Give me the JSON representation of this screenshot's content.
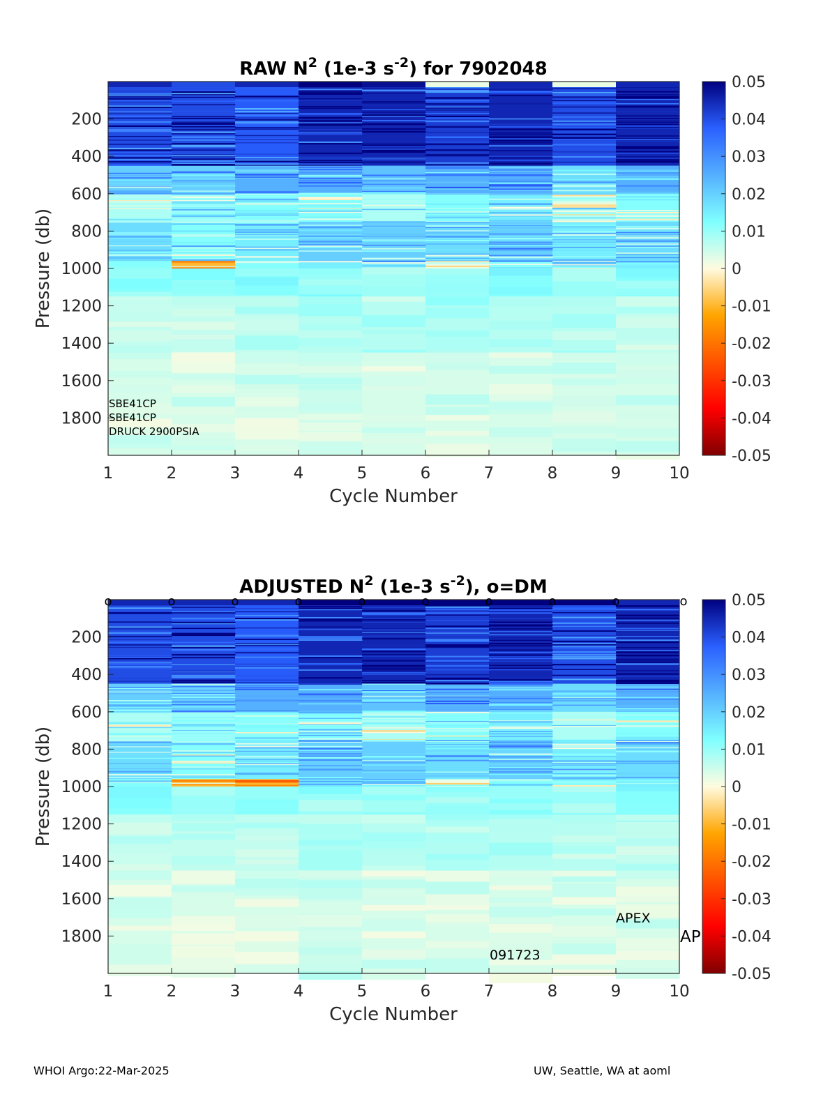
{
  "chart_data": [
    {
      "type": "heatmap",
      "title_prefix": "RAW N",
      "title_sup1": "2",
      "title_mid": " (1e-3 s",
      "title_sup2": "-2",
      "title_suffix": ") for 7902048",
      "xlabel": "Cycle Number",
      "ylabel": "Pressure (db)",
      "xlim": [
        1,
        10
      ],
      "ylim": [
        2000,
        0
      ],
      "xticks": [
        "1",
        "2",
        "3",
        "4",
        "5",
        "6",
        "7",
        "8",
        "9",
        "10"
      ],
      "yticks": [
        "200",
        "400",
        "600",
        "800",
        "1000",
        "1200",
        "1400",
        "1600",
        "1800"
      ],
      "colorbar": {
        "min": -0.05,
        "max": 0.05,
        "colormap": "jet",
        "ticks": [
          "0.05",
          "0.04",
          "0.03",
          "0.02",
          "0.01",
          "0",
          "-0.01",
          "-0.02",
          "-0.03",
          "-0.04",
          "-0.05"
        ]
      },
      "annotations": [
        "SBE41CP",
        "SBE41CP",
        "DRUCK 2900PSIA"
      ],
      "cycles": [
        1,
        2,
        3,
        4,
        5,
        6,
        7,
        8,
        9
      ],
      "data_bands": [
        {
          "p_top": 0,
          "p_bottom": 30,
          "values": [
            0.045,
            0.04,
            0.045,
            0.05,
            0.048,
            0.002,
            0.045,
            0.002,
            0.045
          ]
        },
        {
          "p_top": 30,
          "p_bottom": 450,
          "values": [
            0.04,
            0.04,
            0.038,
            0.045,
            0.045,
            0.042,
            0.045,
            0.04,
            0.045
          ]
        },
        {
          "p_top": 450,
          "p_bottom": 600,
          "values": [
            0.02,
            0.02,
            0.025,
            0.025,
            0.022,
            0.025,
            0.025,
            0.018,
            0.025
          ]
        },
        {
          "p_top": 600,
          "p_bottom": 750,
          "values": [
            0.008,
            0.01,
            0.012,
            0.012,
            0.008,
            0.012,
            0.015,
            0.008,
            0.012
          ]
        },
        {
          "p_top": 750,
          "p_bottom": 960,
          "values": [
            0.018,
            0.012,
            0.015,
            0.02,
            0.02,
            0.018,
            0.02,
            0.015,
            0.018
          ]
        },
        {
          "p_top": 960,
          "p_bottom": 1000,
          "values": [
            0.012,
            -0.01,
            0.012,
            0.015,
            0.015,
            0.002,
            0.012,
            0.012,
            0.015
          ]
        },
        {
          "p_top": 1000,
          "p_bottom": 1150,
          "values": [
            0.012,
            0.01,
            0.012,
            0.01,
            0.009,
            0.01,
            0.012,
            0.01,
            0.012
          ]
        },
        {
          "p_top": 1150,
          "p_bottom": 1450,
          "values": [
            0.006,
            0.006,
            0.006,
            0.008,
            0.007,
            0.008,
            0.007,
            0.007,
            0.006
          ]
        },
        {
          "p_top": 1450,
          "p_bottom": 2000,
          "values": [
            0.004,
            0.004,
            0.004,
            0.005,
            0.004,
            0.004,
            0.004,
            0.004,
            0.004
          ]
        }
      ]
    },
    {
      "type": "heatmap",
      "title_prefix": "ADJUSTED N",
      "title_sup1": "2",
      "title_mid": " (1e-3 s",
      "title_sup2": "-2",
      "title_suffix": "), o=DM",
      "xlabel": "Cycle Number",
      "ylabel": "Pressure (db)",
      "xlim": [
        1,
        10
      ],
      "ylim": [
        2000,
        0
      ],
      "xticks": [
        "1",
        "2",
        "3",
        "4",
        "5",
        "6",
        "7",
        "8",
        "9",
        "10"
      ],
      "yticks": [
        "200",
        "400",
        "600",
        "800",
        "1000",
        "1200",
        "1400",
        "1600",
        "1800"
      ],
      "colorbar": {
        "min": -0.05,
        "max": 0.05,
        "colormap": "jet",
        "ticks": [
          "0.05",
          "0.04",
          "0.03",
          "0.02",
          "0.01",
          "0",
          "-0.01",
          "-0.02",
          "-0.03",
          "-0.04",
          "-0.05"
        ]
      },
      "dm_marker": "o",
      "dm_cycles": [
        1,
        2,
        3,
        4,
        5,
        6,
        7,
        8,
        9,
        10
      ],
      "annotations": [
        "APEX",
        "AP",
        "091723"
      ],
      "cycles": [
        1,
        2,
        3,
        4,
        5,
        6,
        7,
        8,
        9
      ],
      "data_bands": [
        {
          "p_top": 0,
          "p_bottom": 30,
          "values": [
            0.045,
            0.045,
            0.045,
            0.05,
            0.05,
            0.05,
            0.05,
            0.05,
            0.045
          ]
        },
        {
          "p_top": 30,
          "p_bottom": 450,
          "values": [
            0.04,
            0.04,
            0.038,
            0.045,
            0.045,
            0.042,
            0.045,
            0.04,
            0.045
          ]
        },
        {
          "p_top": 450,
          "p_bottom": 600,
          "values": [
            0.02,
            0.02,
            0.025,
            0.025,
            0.022,
            0.025,
            0.025,
            0.018,
            0.025
          ]
        },
        {
          "p_top": 600,
          "p_bottom": 750,
          "values": [
            0.008,
            0.01,
            0.012,
            0.012,
            0.008,
            0.012,
            0.015,
            0.008,
            0.012
          ]
        },
        {
          "p_top": 750,
          "p_bottom": 960,
          "values": [
            0.018,
            0.012,
            0.015,
            0.02,
            0.02,
            0.018,
            0.02,
            0.015,
            0.018
          ]
        },
        {
          "p_top": 960,
          "p_bottom": 1000,
          "values": [
            0.012,
            -0.01,
            -0.01,
            0.015,
            0.015,
            0.002,
            0.012,
            0.012,
            0.015
          ]
        },
        {
          "p_top": 1000,
          "p_bottom": 1150,
          "values": [
            0.012,
            0.01,
            0.012,
            0.01,
            0.009,
            0.01,
            0.012,
            0.01,
            0.012
          ]
        },
        {
          "p_top": 1150,
          "p_bottom": 1450,
          "values": [
            0.006,
            0.006,
            0.006,
            0.008,
            0.007,
            0.008,
            0.007,
            0.007,
            0.006
          ]
        },
        {
          "p_top": 1450,
          "p_bottom": 2000,
          "values": [
            0.004,
            0.004,
            0.004,
            0.005,
            0.004,
            0.004,
            0.004,
            0.004,
            0.004
          ]
        }
      ]
    }
  ],
  "footer": {
    "left": "WHOI Argo:22-Mar-2025",
    "right": "UW, Seattle, WA at aoml"
  }
}
